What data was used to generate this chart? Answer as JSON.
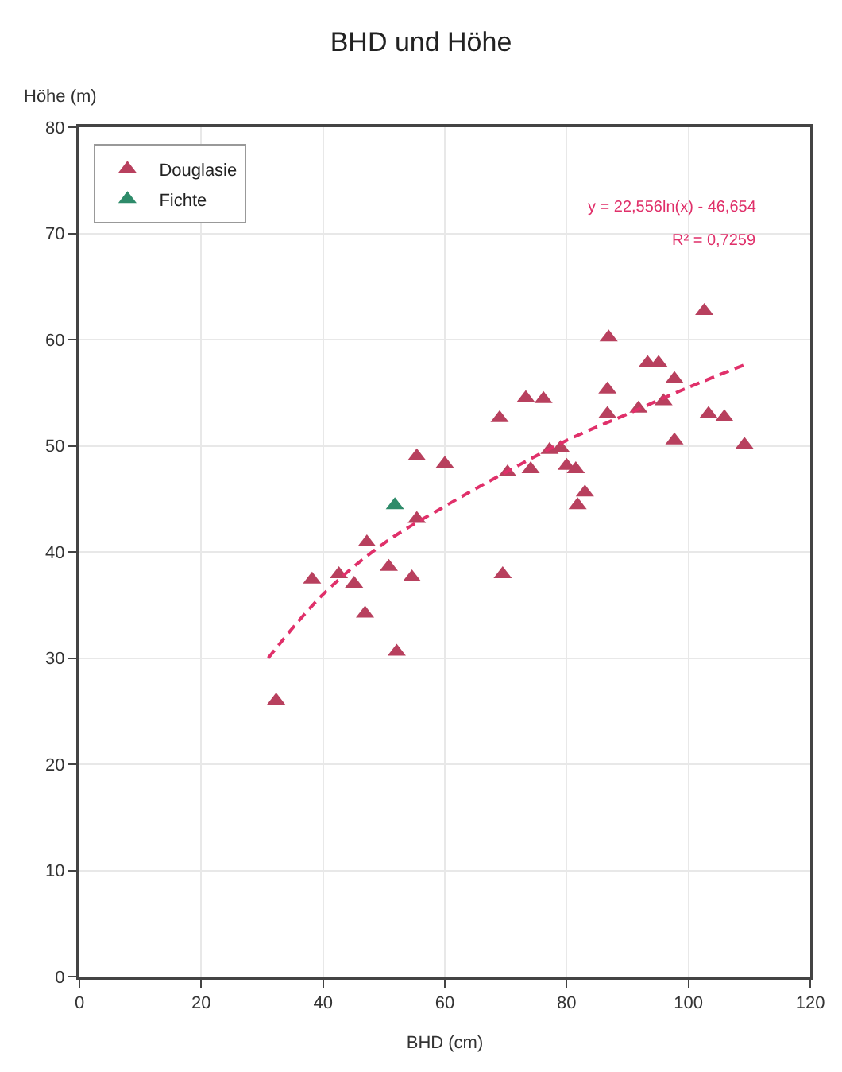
{
  "chart_data": {
    "type": "scatter",
    "title": "BHD und Höhe",
    "xlabel": "BHD (cm)",
    "ylabel": "Höhe (m)",
    "xlim": [
      0,
      120
    ],
    "xticks": [
      0,
      20,
      40,
      60,
      80,
      100,
      120
    ],
    "ylim": [
      0,
      80
    ],
    "yticks": [
      0,
      10,
      20,
      30,
      40,
      50,
      60,
      70,
      80
    ],
    "grid": true,
    "legend": "top left",
    "marker": "triangle",
    "annotations": [
      "y = 22,556ln(x) - 46,654",
      "R² = 0,7259"
    ],
    "series": [
      {
        "name": "Douglasie",
        "color": "#b8405e",
        "x": [
          55.4,
          60,
          70.3,
          55.4,
          47.2,
          38.2,
          42.6,
          45.1,
          50.8,
          54.6,
          69.5,
          46.9,
          52.1,
          32.3,
          102.6,
          86.9,
          93.3,
          95.1,
          97.7,
          73.3,
          76.2,
          86.7,
          69,
          86.7,
          95.9,
          91.8,
          103.3,
          105.9,
          97.7,
          109.2,
          77.2,
          79,
          80,
          81.5,
          74.1,
          83,
          81.8
        ],
        "values": [
          49.0,
          48.3,
          47.5,
          43.1,
          40.9,
          37.4,
          37.9,
          37,
          38.6,
          37.6,
          37.9,
          34.2,
          30.6,
          26.0,
          62.7,
          60.2,
          57.8,
          57.8,
          56.3,
          54.5,
          54.4,
          55.3,
          52.6,
          53,
          54.2,
          53.5,
          53,
          52.7,
          50.5,
          50.1,
          49.6,
          49.8,
          48.1,
          47.8,
          47.8,
          45.6,
          44.4
        ]
      },
      {
        "name": "Fichte",
        "color": "#2e8b6a",
        "x": [
          51.8
        ],
        "values": [
          44.4
        ]
      },
      {
        "type": "line",
        "color": "#e0306a",
        "line_style": "dashed",
        "marker": "none",
        "x": [
          31,
          40,
          50,
          60,
          70,
          80,
          90,
          100,
          110
        ],
        "values": [
          30,
          36,
          40.8,
          44.3,
          47.5,
          50.5,
          53,
          55.5,
          57.8
        ]
      }
    ]
  }
}
